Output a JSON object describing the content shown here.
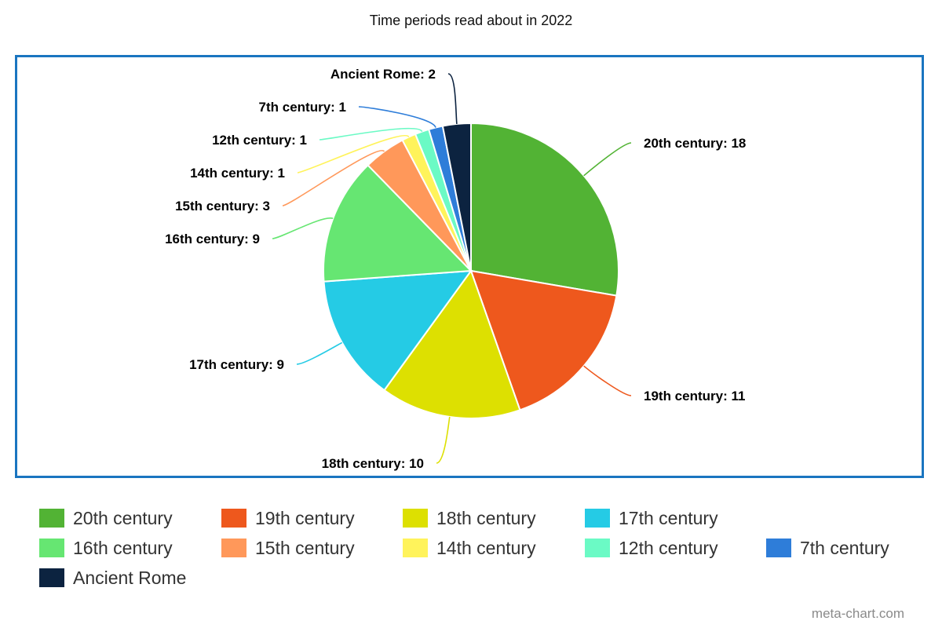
{
  "chart_data": {
    "type": "pie",
    "title": "Time periods read about in 2022",
    "legend_position": "bottom",
    "slices": [
      {
        "label": "20th century",
        "value": 18,
        "color": "#52b334"
      },
      {
        "label": "19th century",
        "value": 11,
        "color": "#ee581d"
      },
      {
        "label": "18th century",
        "value": 10,
        "color": "#dde001"
      },
      {
        "label": "17th century",
        "value": 9,
        "color": "#25cbe5"
      },
      {
        "label": "16th century",
        "value": 9,
        "color": "#66e672"
      },
      {
        "label": "15th century",
        "value": 3,
        "color": "#ff985a"
      },
      {
        "label": "14th century",
        "value": 1,
        "color": "#fff35b"
      },
      {
        "label": "12th century",
        "value": 1,
        "color": "#6bfac5"
      },
      {
        "label": "7th century",
        "value": 1,
        "color": "#2e7dd9"
      },
      {
        "label": "Ancient Rome",
        "value": 2,
        "color": "#0c2340"
      }
    ]
  },
  "frame_color": "#1a75c0",
  "credit": "meta-chart.com"
}
